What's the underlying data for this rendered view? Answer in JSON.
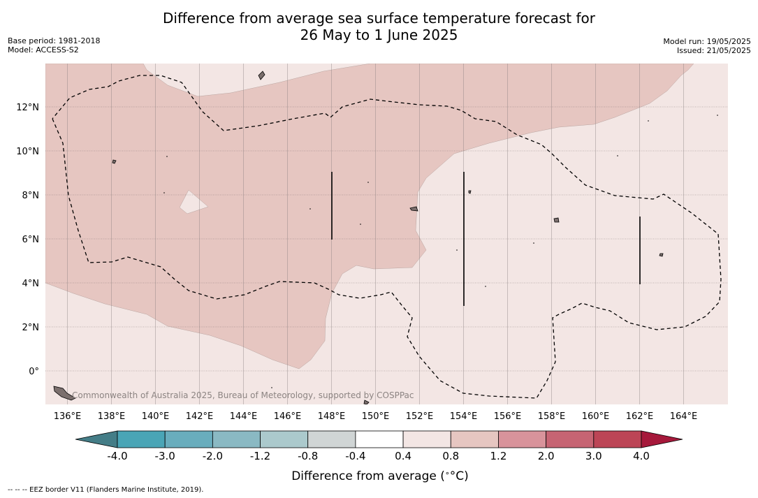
{
  "title_line1": "Difference from average sea surface temperature forecast for",
  "title_line2": "26 May to 1 June 2025",
  "meta_left": [
    "Base period: 1981-2018",
    "Model: ACCESS-S2"
  ],
  "meta_right": [
    "Model run: 19/05/2025",
    "Issued: 21/05/2025"
  ],
  "copyright": "Commonwealth of Australia 2025, Bureau of Meteorology, supported by COSPPac",
  "footnote": "--  --  -- EEZ border V11 (Flanders Marine Institute, 2019).",
  "colors": {
    "bin_0.4_0.8": "#f3e6e4",
    "bin_0.8_1.2": "#e6c6c1",
    "eez_border": "#000000",
    "land": "#7b6f6d"
  },
  "chart_data": {
    "type": "heatmap",
    "map_extent": {
      "lon": [
        135,
        166
      ],
      "lat": [
        -1.5,
        14
      ]
    },
    "x_ticks": [
      136,
      138,
      140,
      142,
      144,
      146,
      148,
      150,
      152,
      154,
      156,
      158,
      160,
      162,
      164
    ],
    "x_tick_labels": [
      "136°E",
      "138°E",
      "140°E",
      "142°E",
      "144°E",
      "146°E",
      "148°E",
      "150°E",
      "152°E",
      "154°E",
      "156°E",
      "158°E",
      "160°E",
      "162°E",
      "164°E"
    ],
    "y_ticks": [
      0,
      2,
      4,
      6,
      8,
      10,
      12
    ],
    "y_tick_labels": [
      "0°",
      "2°N",
      "4°N",
      "6°N",
      "8°N",
      "10°N",
      "12°N"
    ],
    "grid": true,
    "fields": [
      {
        "range": "0.4 to 0.8",
        "color": "#f3e6e4",
        "description_region": "eastern and north-eastern sea area"
      },
      {
        "range": "0.8 to 1.2",
        "color": "#e6c6c1",
        "description_region": "western sea area"
      }
    ],
    "colorbar": {
      "label": "Difference from average (°C)",
      "label_text": "Difference from average (",
      "label_unit": "°C)",
      "boundaries": [
        -4.0,
        -3.0,
        -2.0,
        -1.2,
        -0.8,
        -0.4,
        0.4,
        0.8,
        1.2,
        2.0,
        3.0,
        4.0
      ],
      "tick_labels": [
        "-4.0",
        "-3.0",
        "-2.0",
        "-1.2",
        "-0.8",
        "-0.4",
        "0.4",
        "0.8",
        "1.2",
        "2.0",
        "3.0",
        "4.0"
      ],
      "colors": [
        "#4aa5b6",
        "#69adbd",
        "#8ab9c3",
        "#abc9cc",
        "#d0d5d5",
        "#ffffff",
        "#f3e6e4",
        "#e6c6c1",
        "#d8939b",
        "#c66473",
        "#bc4556"
      ],
      "extend_low_color": "#447d87",
      "extend_high_color": "#a6193b"
    }
  }
}
